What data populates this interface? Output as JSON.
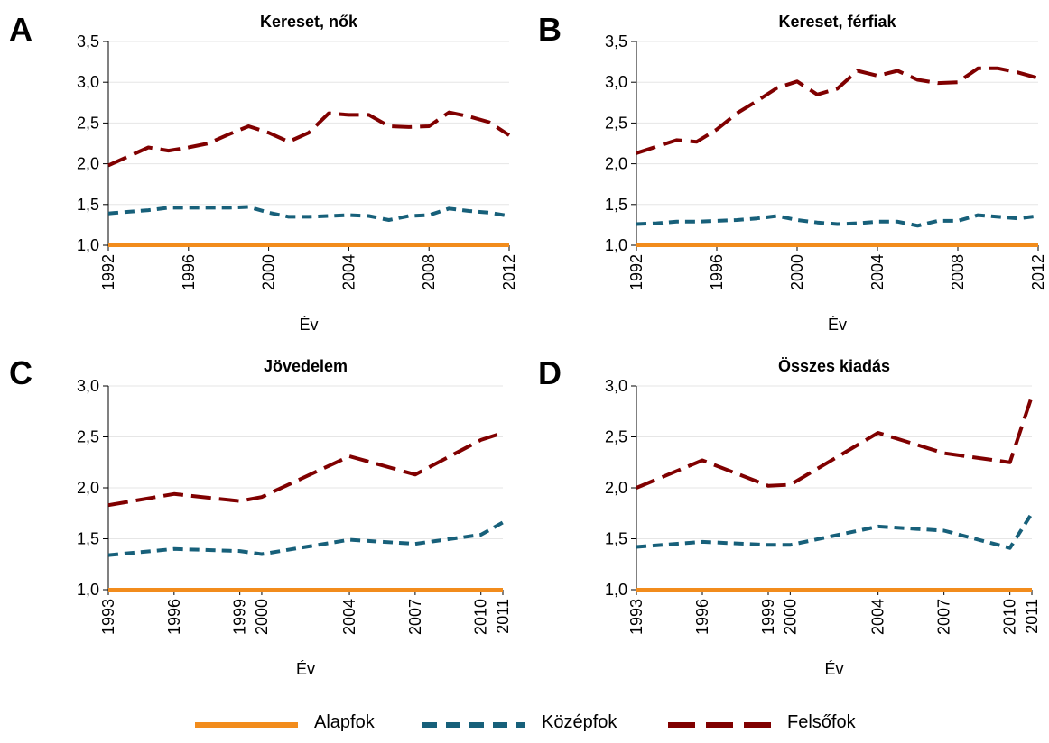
{
  "colors": {
    "Alapfok": "#f28c1c",
    "Középfok": "#17607a",
    "Felsőfok": "#800000",
    "grid": "#e6e6e6",
    "axis": "#000000"
  },
  "legend": {
    "items": [
      {
        "label": "Alapfok",
        "style": "solid"
      },
      {
        "label": "Középfok",
        "style": "short-dash"
      },
      {
        "label": "Felsőfok",
        "style": "long-dash"
      }
    ],
    "placement": "bottom"
  },
  "chart_data": [
    {
      "panel": "A",
      "type": "line",
      "title": "Kereset, nők",
      "xlabel": "Év",
      "ylabel": "",
      "xlim": [
        1992,
        2012
      ],
      "ylim": [
        1.0,
        3.5
      ],
      "yticks": [
        "1,0",
        "1,5",
        "2,0",
        "2,5",
        "3,0",
        "3,5"
      ],
      "ytick_values": [
        1.0,
        1.5,
        2.0,
        2.5,
        3.0,
        3.5
      ],
      "xticks": [
        "1992",
        "1996",
        "2000",
        "2004",
        "2008",
        "2012"
      ],
      "xtick_values": [
        1992,
        1996,
        2000,
        2004,
        2008,
        2012
      ],
      "grid": true,
      "x": [
        1992,
        1993,
        1994,
        1995,
        1996,
        1997,
        1998,
        1999,
        2000,
        2001,
        2002,
        2003,
        2004,
        2005,
        2006,
        2007,
        2008,
        2009,
        2010,
        2011,
        2012
      ],
      "series": [
        {
          "name": "Alapfok",
          "values": [
            1.0,
            1.0,
            1.0,
            1.0,
            1.0,
            1.0,
            1.0,
            1.0,
            1.0,
            1.0,
            1.0,
            1.0,
            1.0,
            1.0,
            1.0,
            1.0,
            1.0,
            1.0,
            1.0,
            1.0,
            1.0
          ]
        },
        {
          "name": "Középfok",
          "values": [
            1.39,
            1.41,
            1.43,
            1.46,
            1.46,
            1.46,
            1.46,
            1.47,
            1.4,
            1.35,
            1.35,
            1.36,
            1.37,
            1.36,
            1.31,
            1.36,
            1.37,
            1.45,
            1.42,
            1.4,
            1.36
          ]
        },
        {
          "name": "Felsőfok",
          "values": [
            1.98,
            2.09,
            2.2,
            2.16,
            2.2,
            2.25,
            2.36,
            2.46,
            2.38,
            2.27,
            2.38,
            2.62,
            2.6,
            2.6,
            2.46,
            2.45,
            2.46,
            2.63,
            2.58,
            2.51,
            2.35
          ]
        }
      ]
    },
    {
      "panel": "B",
      "type": "line",
      "title": "Kereset, férfiak",
      "xlabel": "Év",
      "ylabel": "",
      "xlim": [
        1992,
        2012
      ],
      "ylim": [
        1.0,
        3.5
      ],
      "yticks": [
        "1,0",
        "1,5",
        "2,0",
        "2,5",
        "3,0",
        "3,5"
      ],
      "ytick_values": [
        1.0,
        1.5,
        2.0,
        2.5,
        3.0,
        3.5
      ],
      "xticks": [
        "1992",
        "1996",
        "2000",
        "2004",
        "2008",
        "2012"
      ],
      "xtick_values": [
        1992,
        1996,
        2000,
        2004,
        2008,
        2012
      ],
      "grid": true,
      "x": [
        1992,
        1993,
        1994,
        1995,
        1996,
        1997,
        1998,
        1999,
        2000,
        2001,
        2002,
        2003,
        2004,
        2005,
        2006,
        2007,
        2008,
        2009,
        2010,
        2011,
        2012
      ],
      "series": [
        {
          "name": "Alapfok",
          "values": [
            1.0,
            1.0,
            1.0,
            1.0,
            1.0,
            1.0,
            1.0,
            1.0,
            1.0,
            1.0,
            1.0,
            1.0,
            1.0,
            1.0,
            1.0,
            1.0,
            1.0,
            1.0,
            1.0,
            1.0,
            1.0
          ]
        },
        {
          "name": "Középfok",
          "values": [
            1.26,
            1.27,
            1.29,
            1.29,
            1.3,
            1.31,
            1.33,
            1.36,
            1.31,
            1.28,
            1.26,
            1.27,
            1.29,
            1.29,
            1.24,
            1.3,
            1.3,
            1.37,
            1.35,
            1.33,
            1.36
          ]
        },
        {
          "name": "Felsőfok",
          "values": [
            2.13,
            2.21,
            2.29,
            2.27,
            2.42,
            2.62,
            2.77,
            2.93,
            3.01,
            2.85,
            2.92,
            3.14,
            3.08,
            3.14,
            3.03,
            2.99,
            3.0,
            3.17,
            3.17,
            3.12,
            3.05
          ]
        }
      ]
    },
    {
      "panel": "C",
      "type": "line",
      "title": "Jövedelem",
      "xlabel": "Év",
      "ylabel": "",
      "xlim": [
        1993,
        2011
      ],
      "ylim": [
        1.0,
        3.0
      ],
      "yticks": [
        "1,0",
        "1,5",
        "2,0",
        "2,5",
        "3,0"
      ],
      "ytick_values": [
        1.0,
        1.5,
        2.0,
        2.5,
        3.0
      ],
      "xticks": [
        "1993",
        "1996",
        "1999",
        "2000",
        "2004",
        "2007",
        "2010",
        "2011"
      ],
      "xtick_values": [
        1993,
        1996,
        1999,
        2000,
        2004,
        2007,
        2010,
        2011
      ],
      "grid": true,
      "x": [
        1993,
        1996,
        1999,
        2000,
        2004,
        2007,
        2010,
        2011
      ],
      "series": [
        {
          "name": "Alapfok",
          "values": [
            1.0,
            1.0,
            1.0,
            1.0,
            1.0,
            1.0,
            1.0,
            1.0
          ]
        },
        {
          "name": "Középfok",
          "values": [
            1.34,
            1.4,
            1.38,
            1.35,
            1.49,
            1.45,
            1.54,
            1.66
          ]
        },
        {
          "name": "Felsőfok",
          "values": [
            1.83,
            1.94,
            1.87,
            1.91,
            2.31,
            2.13,
            2.47,
            2.54
          ]
        }
      ]
    },
    {
      "panel": "D",
      "type": "line",
      "title": "Összes kiadás",
      "xlabel": "Év",
      "ylabel": "",
      "xlim": [
        1993,
        2011
      ],
      "ylim": [
        1.0,
        3.0
      ],
      "yticks": [
        "1,0",
        "1,5",
        "2,0",
        "2,5",
        "3,0"
      ],
      "ytick_values": [
        1.0,
        1.5,
        2.0,
        2.5,
        3.0
      ],
      "xticks": [
        "1993",
        "1996",
        "1999",
        "2000",
        "2004",
        "2007",
        "2010",
        "2011"
      ],
      "xtick_values": [
        1993,
        1996,
        1999,
        2000,
        2004,
        2007,
        2010,
        2011
      ],
      "grid": true,
      "x": [
        1993,
        1996,
        1999,
        2000,
        2004,
        2007,
        2010,
        2011
      ],
      "series": [
        {
          "name": "Alapfok",
          "values": [
            1.0,
            1.0,
            1.0,
            1.0,
            1.0,
            1.0,
            1.0,
            1.0
          ]
        },
        {
          "name": "Középfok",
          "values": [
            1.42,
            1.47,
            1.44,
            1.44,
            1.62,
            1.58,
            1.41,
            1.75
          ]
        },
        {
          "name": "Felsőfok",
          "values": [
            2.0,
            2.27,
            2.02,
            2.03,
            2.54,
            2.34,
            2.25,
            2.9
          ]
        }
      ]
    }
  ]
}
